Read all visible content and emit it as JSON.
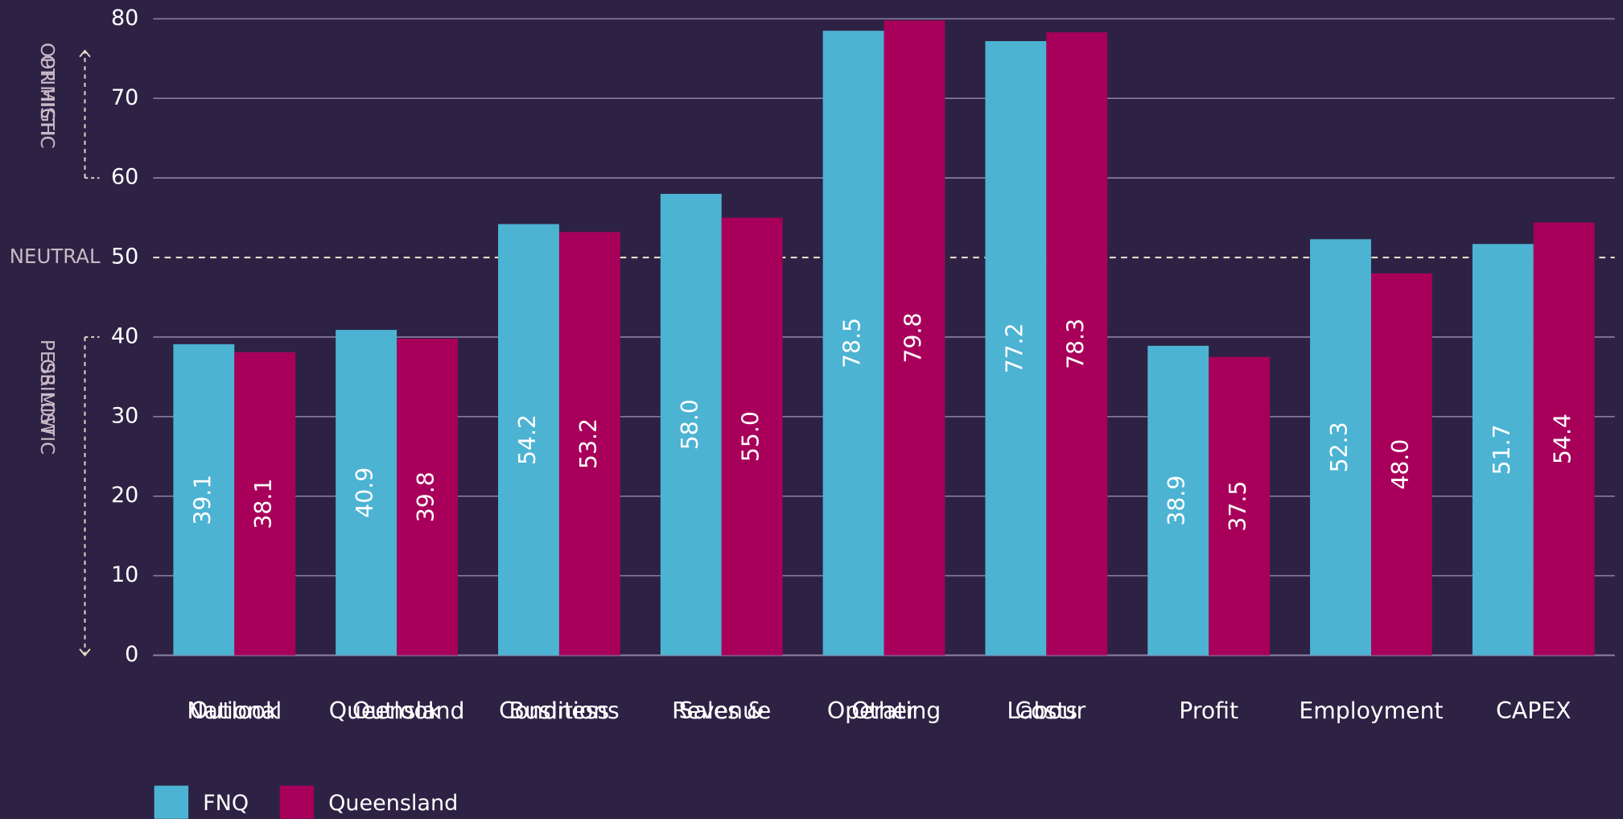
{
  "chart_data": {
    "type": "bar",
    "categories": [
      "National Outlook",
      "Queensland Outlook",
      "Business Conditions",
      "Sales & Revenue",
      "Other Operating",
      "Labour Costs",
      "Profit",
      "Employment",
      "CAPEX"
    ],
    "series": [
      {
        "name": "FNQ",
        "color": "#4db3d3",
        "values": [
          39.1,
          40.9,
          54.2,
          58.0,
          78.5,
          77.2,
          38.9,
          52.3,
          51.7
        ],
        "value_labels": [
          "39.1",
          "40.9",
          "54.2",
          "58.0",
          "78.5",
          "77.2",
          "38.9",
          "52.3",
          "51.7"
        ]
      },
      {
        "name": "Queensland",
        "color": "#a8005a",
        "values": [
          38.1,
          39.8,
          53.2,
          55.0,
          79.8,
          78.3,
          37.5,
          48.0,
          54.4
        ],
        "value_labels": [
          "38.1",
          "39.8",
          "53.2",
          "55.0",
          "79.8",
          "78.3",
          "37.5",
          "48.0",
          "54.4"
        ]
      }
    ],
    "ylim": [
      0,
      80
    ],
    "yticks": [
      0,
      10,
      20,
      30,
      40,
      50,
      60,
      70,
      80
    ],
    "grid": true,
    "reference_line": {
      "value": 50,
      "label": "NEUTRAL"
    },
    "annotations": [
      {
        "label": "OPTIMISTIC OR HIGH",
        "from": 60,
        "to": 76
      },
      {
        "label": "PESSIMISTIC OR LOW",
        "from": 40,
        "to": 0
      }
    ],
    "legend": "bottom-left"
  }
}
